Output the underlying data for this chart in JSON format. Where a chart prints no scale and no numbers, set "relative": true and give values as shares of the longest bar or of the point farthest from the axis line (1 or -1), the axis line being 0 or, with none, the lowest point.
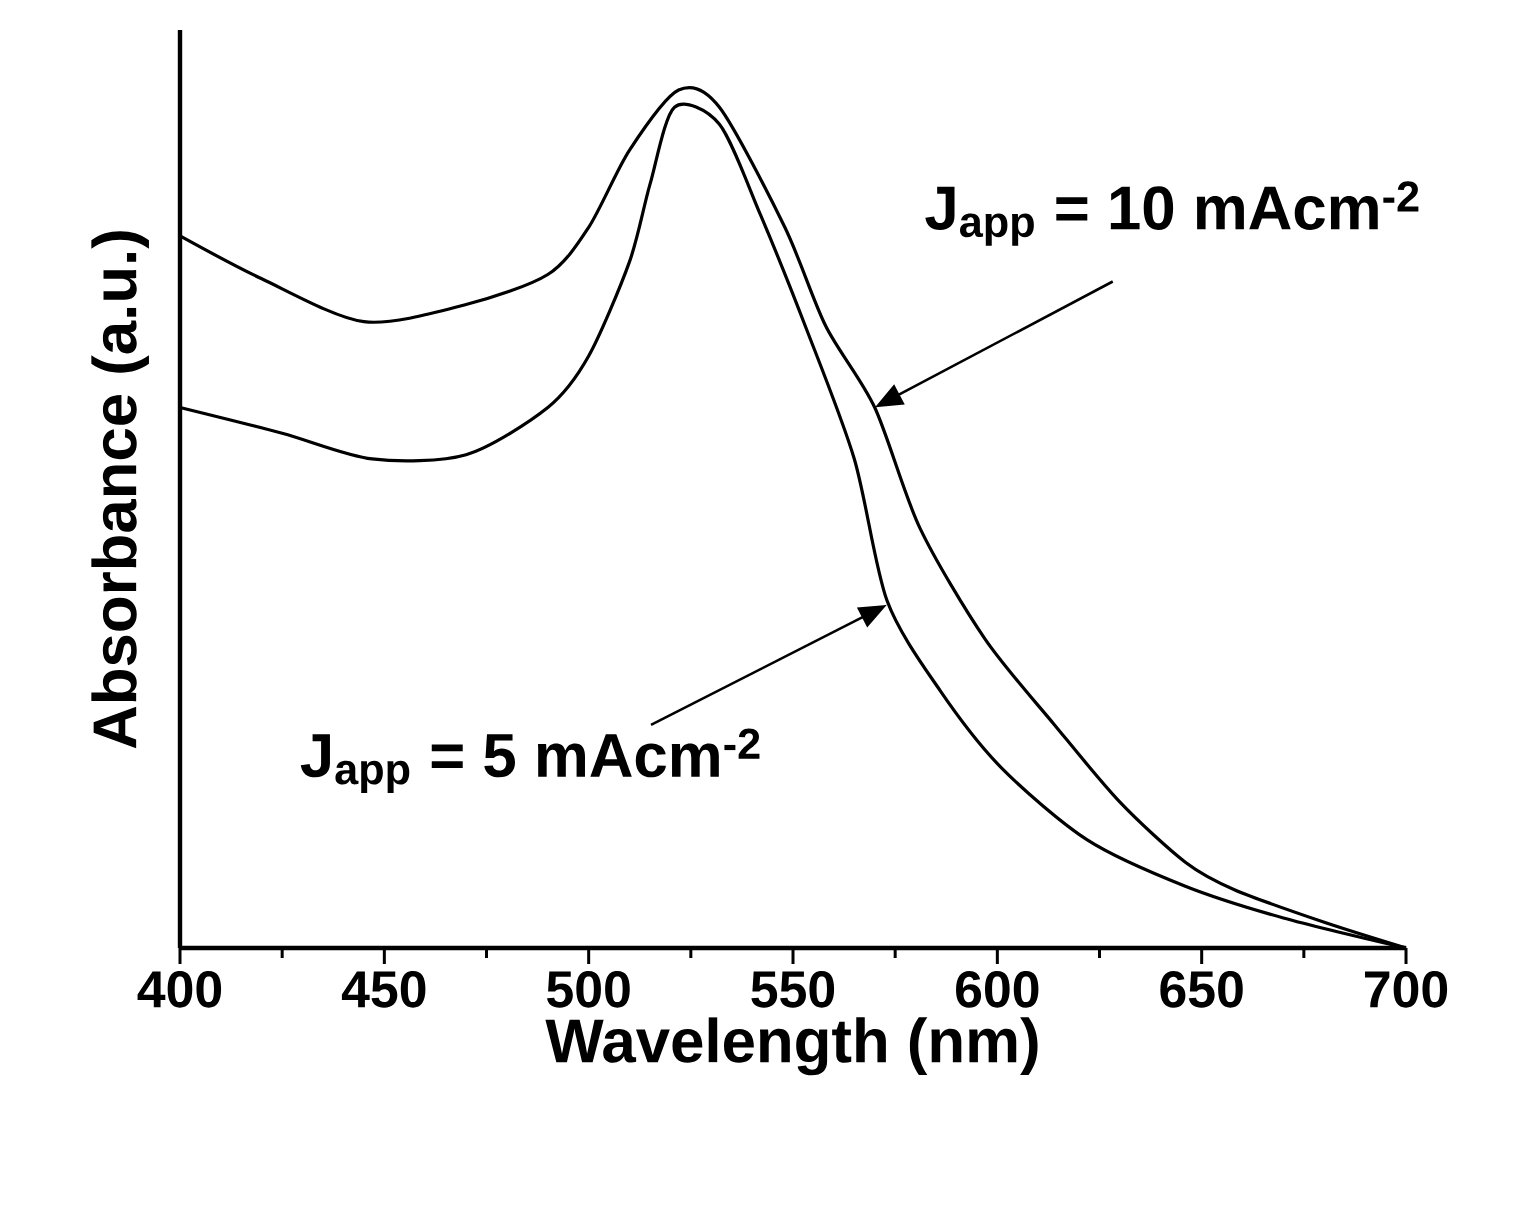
{
  "chart_data": {
    "type": "line",
    "relative": true,
    "xlabel": "Wavelength (nm)",
    "ylabel": "Absorbance (a.u.)",
    "xlim": [
      400,
      700
    ],
    "xticks": [
      400,
      450,
      500,
      550,
      600,
      650,
      700
    ],
    "series": [
      {
        "color": "#000000",
        "x": [
          400,
          420,
          445,
          470,
          490,
          500,
          510,
          522,
          532,
          548,
          558,
          570,
          581,
          597,
          614,
          630,
          646,
          658,
          680,
          700
        ],
        "values": [
          0.83,
          0.78,
          0.73,
          0.75,
          0.785,
          0.84,
          0.93,
          1.0,
          0.98,
          0.84,
          0.725,
          0.63,
          0.49,
          0.36,
          0.26,
          0.17,
          0.1,
          0.068,
          0.03,
          0
        ]
      },
      {
        "color": "#000000",
        "x": [
          400,
          425,
          447,
          470,
          490,
          500,
          510,
          515,
          521,
          532,
          542,
          553,
          565,
          573,
          586,
          601,
          622,
          646,
          670,
          700
        ],
        "values": [
          0.63,
          0.6,
          0.57,
          0.575,
          0.63,
          0.69,
          0.8,
          0.89,
          0.98,
          0.96,
          0.855,
          0.725,
          0.57,
          0.405,
          0.3,
          0.21,
          0.126,
          0.072,
          0.035,
          0
        ]
      }
    ],
    "annotations": [
      {
        "text": "J$_{app}$ = 10 mAcm$^{-2}$",
        "x": 570,
        "y": 0.63
      },
      {
        "text": "J$_{app}$ = 5 mAcm$^{-2}$",
        "x": 573,
        "y": 0.4
      }
    ]
  }
}
